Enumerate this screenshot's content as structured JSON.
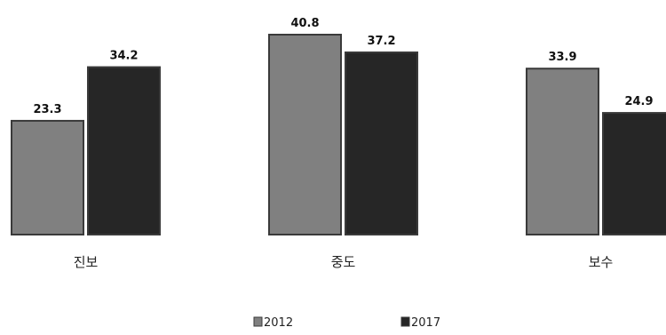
{
  "chart_data": {
    "type": "bar",
    "categories": [
      "진보",
      "중도",
      "보수"
    ],
    "series": [
      {
        "name": "2012",
        "values": [
          23.3,
          40.8,
          33.9
        ],
        "color": "#808080"
      },
      {
        "name": "2017",
        "values": [
          34.2,
          37.2,
          24.9
        ],
        "color": "#262626"
      }
    ],
    "ylim": [
      0,
      40.8
    ],
    "value_labels": true,
    "legend_position": "bottom-center",
    "grid": false,
    "bar_border_color": "#3a3a3a"
  }
}
